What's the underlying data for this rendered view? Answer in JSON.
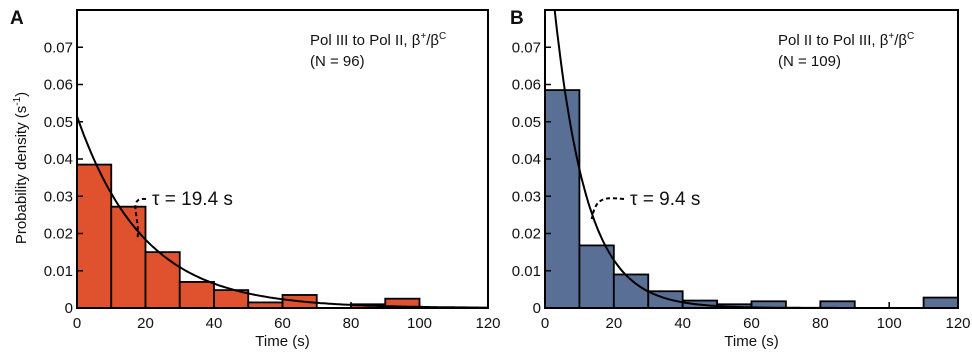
{
  "figure": {
    "ylabel_main": "Probability density (s",
    "ylabel_sup": "-1",
    "ylabel_close": ")"
  },
  "chart_data": [
    {
      "type": "bar",
      "panel": "A",
      "legend_line1_main": "Pol III to Pol II, β",
      "legend_line1_sup1": "+",
      "legend_line1_mid": "/β",
      "legend_line1_sup2": "C",
      "legend_line2": "(N = 96)",
      "tau_label": "τ = 19.4 s",
      "tau_s": 19.4,
      "fit_y0": 0.0515,
      "xlabel": "Time (s)",
      "xlim": [
        0,
        120
      ],
      "ylim": [
        0,
        0.08
      ],
      "xticks": [
        "0",
        "20",
        "40",
        "60",
        "80",
        "100",
        "120"
      ],
      "yticks": [
        "0",
        "0.01",
        "0.02",
        "0.03",
        "0.04",
        "0.05",
        "0.06",
        "0.07"
      ],
      "bin_width": 10,
      "bin_starts": [
        0,
        10,
        20,
        30,
        40,
        50,
        60,
        70,
        80,
        90,
        100,
        110
      ],
      "values": [
        0.0385,
        0.0272,
        0.015,
        0.007,
        0.0048,
        0.0015,
        0.0035,
        0,
        0.001,
        0.0025,
        0,
        0
      ],
      "bar_color": "#e0522d"
    },
    {
      "type": "bar",
      "panel": "B",
      "legend_line1_main": "Pol II to Pol III, β",
      "legend_line1_sup1": "+",
      "legend_line1_mid": "/β",
      "legend_line1_sup2": "C",
      "legend_line2": "(N = 109)",
      "tau_label": "τ = 9.4 s",
      "tau_s": 9.4,
      "fit_y0": 0.108,
      "xlabel": "Time (s)",
      "xlim": [
        0,
        120
      ],
      "ylim": [
        0,
        0.08
      ],
      "xticks": [
        "0",
        "20",
        "40",
        "60",
        "80",
        "100",
        "120"
      ],
      "yticks": [
        "0",
        "0.01",
        "0.02",
        "0.03",
        "0.04",
        "0.05",
        "0.06",
        "0.07"
      ],
      "bin_width": 10,
      "bin_starts": [
        0,
        10,
        20,
        30,
        40,
        50,
        60,
        70,
        80,
        90,
        100,
        110
      ],
      "values": [
        0.0585,
        0.0168,
        0.009,
        0.0045,
        0.002,
        0.001,
        0.0018,
        0,
        0.0018,
        0,
        0,
        0.0028
      ],
      "bar_color": "#5a6f95"
    }
  ]
}
